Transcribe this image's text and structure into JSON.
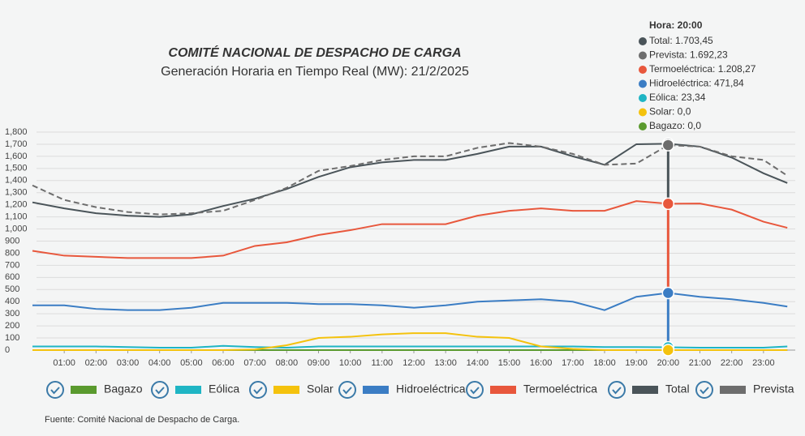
{
  "chart_data": {
    "type": "line",
    "title": "COMITÉ NACIONAL DE DESPACHO DE CARGA",
    "subtitle": "Generación Horaria en Tiempo Real (MW): 21/2/2025",
    "source": "Fuente: Comité Nacional de Despacho de Carga.",
    "x": [
      0,
      1,
      2,
      3,
      4,
      5,
      6,
      7,
      8,
      9,
      10,
      11,
      12,
      13,
      14,
      15,
      16,
      17,
      18,
      19,
      20,
      21,
      22,
      23,
      23.75
    ],
    "xlim": [
      0,
      24
    ],
    "xticks": [
      {
        "value": 1,
        "label": "01:00"
      },
      {
        "value": 2,
        "label": "02:00"
      },
      {
        "value": 3,
        "label": "03:00"
      },
      {
        "value": 4,
        "label": "04:00"
      },
      {
        "value": 5,
        "label": "05:00"
      },
      {
        "value": 6,
        "label": "06:00"
      },
      {
        "value": 7,
        "label": "07:00"
      },
      {
        "value": 8,
        "label": "08:00"
      },
      {
        "value": 9,
        "label": "09:00"
      },
      {
        "value": 10,
        "label": "10:00"
      },
      {
        "value": 11,
        "label": "11:00"
      },
      {
        "value": 12,
        "label": "12:00"
      },
      {
        "value": 13,
        "label": "13:00"
      },
      {
        "value": 14,
        "label": "14:00"
      },
      {
        "value": 15,
        "label": "15:00"
      },
      {
        "value": 16,
        "label": "16:00"
      },
      {
        "value": 17,
        "label": "17:00"
      },
      {
        "value": 18,
        "label": "18:00"
      },
      {
        "value": 19,
        "label": "19:00"
      },
      {
        "value": 20,
        "label": "20:00"
      },
      {
        "value": 21,
        "label": "21:00"
      },
      {
        "value": 22,
        "label": "22:00"
      },
      {
        "value": 23,
        "label": "23:00"
      }
    ],
    "ylim": [
      0,
      1800
    ],
    "yticks": [
      0,
      100,
      200,
      300,
      400,
      500,
      600,
      700,
      800,
      900,
      {
        "value": 1000,
        "label": "1,000"
      },
      {
        "value": 1100,
        "label": "1,100"
      },
      {
        "value": 1200,
        "label": "1,200"
      },
      {
        "value": 1300,
        "label": "1,300"
      },
      {
        "value": 1400,
        "label": "1,400"
      },
      {
        "value": 1500,
        "label": "1,500"
      },
      {
        "value": 1600,
        "label": "1,600"
      },
      {
        "value": 1700,
        "label": "1,700"
      },
      {
        "value": 1800,
        "label": "1,800"
      }
    ],
    "grid": true,
    "series": [
      {
        "name": "Bagazo",
        "color": "#5a9a2e",
        "values": [
          0,
          0,
          0,
          0,
          0,
          0,
          0,
          0,
          0,
          0,
          0,
          0,
          0,
          0,
          0,
          0,
          0,
          0,
          0,
          0,
          0,
          0,
          0,
          0,
          0
        ]
      },
      {
        "name": "Eólica",
        "color": "#1fb5c4",
        "values": [
          30,
          30,
          30,
          25,
          20,
          20,
          35,
          25,
          20,
          30,
          30,
          30,
          30,
          30,
          30,
          30,
          30,
          30,
          25,
          25,
          23.34,
          20,
          20,
          20,
          30
        ]
      },
      {
        "name": "Solar",
        "color": "#f4c20d",
        "values": [
          0,
          0,
          0,
          0,
          0,
          0,
          0,
          5,
          40,
          100,
          110,
          130,
          140,
          140,
          110,
          100,
          30,
          10,
          0,
          0,
          0,
          0,
          0,
          0,
          0
        ]
      },
      {
        "name": "Hidroeléctrica",
        "color": "#3b7dc4",
        "values": [
          370,
          370,
          340,
          330,
          330,
          350,
          390,
          390,
          390,
          380,
          380,
          370,
          350,
          370,
          400,
          410,
          420,
          400,
          330,
          440,
          471.84,
          440,
          420,
          390,
          360
        ]
      },
      {
        "name": "Termoeléctrica",
        "color": "#e8573c",
        "values": [
          820,
          780,
          770,
          760,
          760,
          760,
          780,
          860,
          890,
          950,
          990,
          1040,
          1040,
          1040,
          1110,
          1150,
          1170,
          1150,
          1150,
          1230,
          1208.27,
          1210,
          1160,
          1060,
          1010
        ]
      },
      {
        "name": "Total",
        "color": "#4a5459",
        "values": [
          1220,
          1170,
          1130,
          1110,
          1100,
          1120,
          1190,
          1250,
          1330,
          1430,
          1510,
          1550,
          1570,
          1570,
          1620,
          1680,
          1680,
          1600,
          1530,
          1700,
          1703.45,
          1680,
          1590,
          1460,
          1380
        ]
      },
      {
        "name": "Prevista",
        "color": "#6d6d6d",
        "dashed": true,
        "values": [
          1360,
          1240,
          1180,
          1140,
          1120,
          1130,
          1150,
          1240,
          1340,
          1480,
          1520,
          1570,
          1600,
          1600,
          1670,
          1710,
          1680,
          1620,
          1530,
          1540,
          1692.23,
          1680,
          1600,
          1570,
          1440
        ]
      }
    ],
    "tooltip": {
      "title": "Hora: 20:00",
      "items": [
        {
          "text": "Total: 1.703,45",
          "color": "#4a5459"
        },
        {
          "text": "Prevista: 1.692,23",
          "color": "#6d6d6d"
        },
        {
          "text": "Termoeléctrica: 1.208,27",
          "color": "#e8573c"
        },
        {
          "text": "Hidroeléctrica: 471,84",
          "color": "#3b7dc4"
        },
        {
          "text": "Eólica: 23,34",
          "color": "#1fb5c4"
        },
        {
          "text": "Solar: 0,0",
          "color": "#f4c20d"
        },
        {
          "text": "Bagazo: 0,0",
          "color": "#5a9a2e"
        }
      ]
    }
  }
}
